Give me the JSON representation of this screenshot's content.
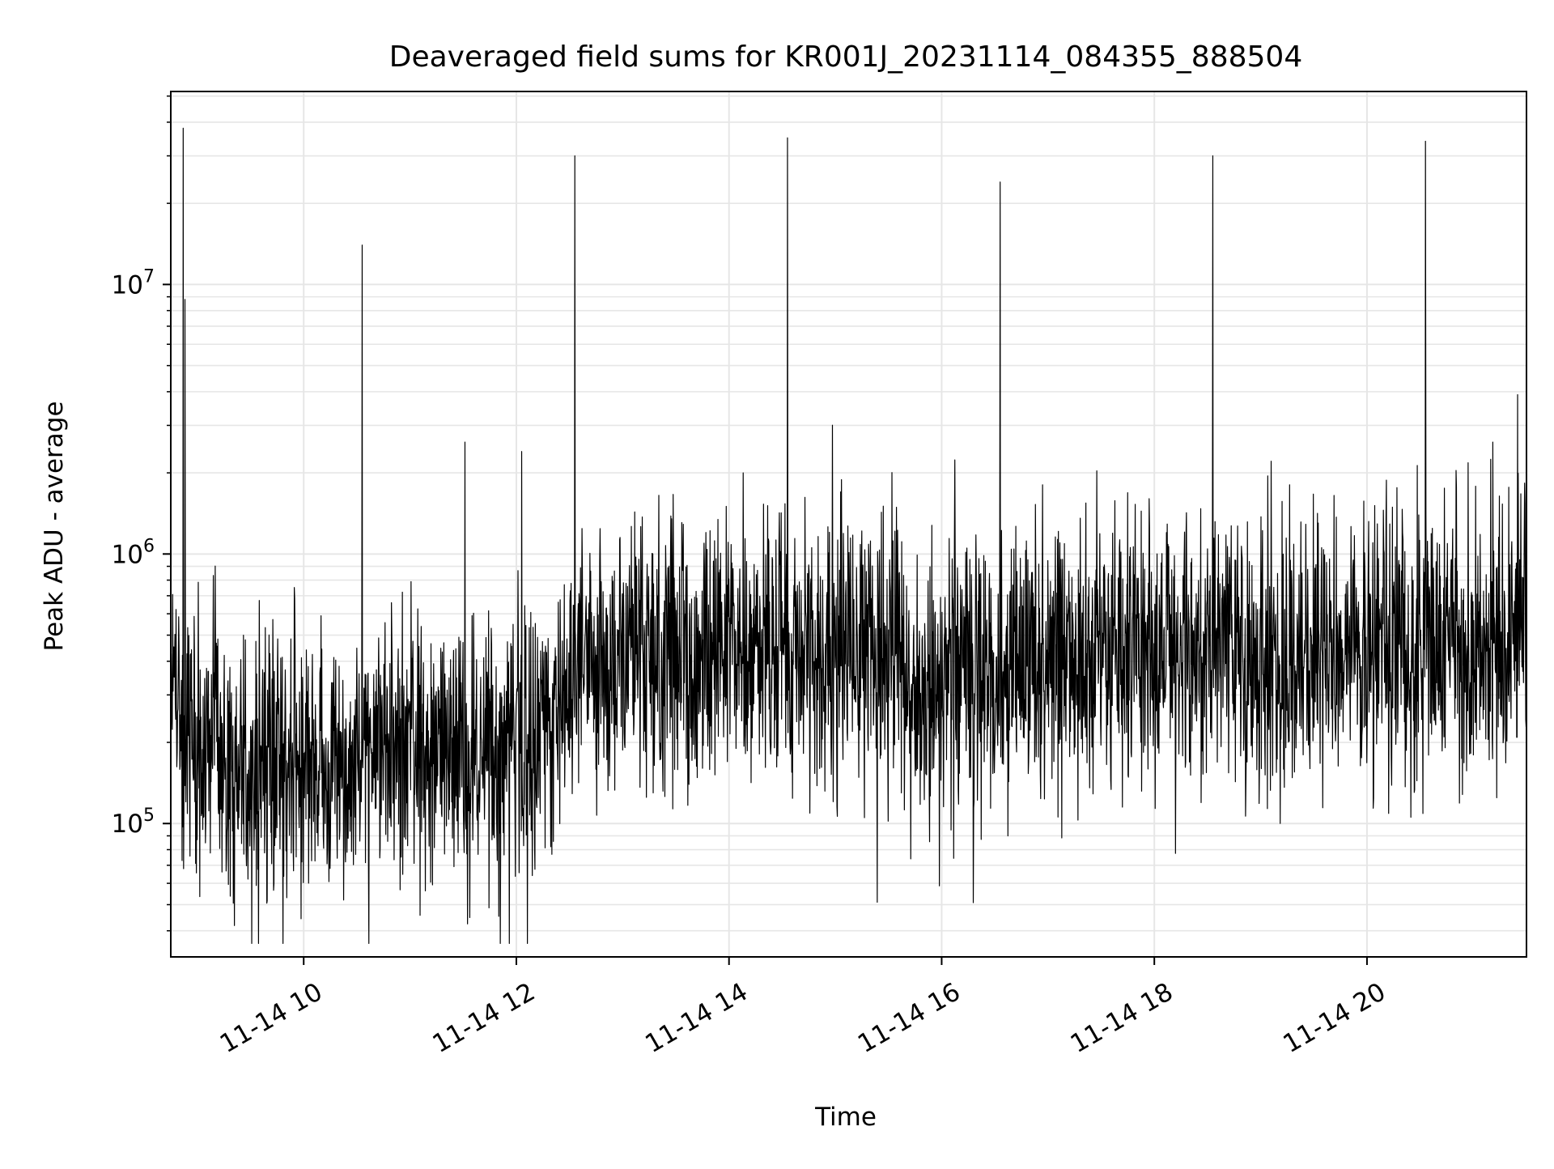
{
  "chart_data": {
    "type": "line",
    "title": "Deaveraged field sums for KR001J_20231114_084355_888504",
    "xlabel": "Time",
    "ylabel": "Peak ADU - average",
    "yscale": "log",
    "ylim": [
      32000,
      52000000
    ],
    "xlim": [
      "2023-11-14 08:45",
      "2023-11-14 21:30"
    ],
    "grid": true,
    "x_tick_labels": [
      "11-14 10",
      "11-14 12",
      "11-14 14",
      "11-14 16",
      "11-14 18",
      "11-14 20"
    ],
    "x_ticks": [
      "2023-11-14 10:00",
      "2023-11-14 12:00",
      "2023-11-14 14:00",
      "2023-11-14 16:00",
      "2023-11-14 18:00",
      "2023-11-14 20:00"
    ],
    "y_tick_labels": [
      {
        "base": "10",
        "exp": "5",
        "value": 100000
      },
      {
        "base": "10",
        "exp": "6",
        "value": 1000000
      },
      {
        "base": "10",
        "exp": "7",
        "value": 10000000
      }
    ],
    "line_color": "#000000",
    "grid_color": "#e6e6e6",
    "series": [
      {
        "baseline": [
          {
            "x": "2023-11-14 08:45",
            "y": 300000
          },
          {
            "x": "2023-11-14 09:00",
            "y": 200000
          },
          {
            "x": "2023-11-14 09:30",
            "y": 160000
          },
          {
            "x": "2023-11-14 10:00",
            "y": 170000
          },
          {
            "x": "2023-11-14 10:30",
            "y": 170000
          },
          {
            "x": "2023-11-14 11:00",
            "y": 190000
          },
          {
            "x": "2023-11-14 11:30",
            "y": 170000
          },
          {
            "x": "2023-11-14 12:00",
            "y": 200000
          },
          {
            "x": "2023-11-14 12:20",
            "y": 260000
          },
          {
            "x": "2023-11-14 12:30",
            "y": 400000
          },
          {
            "x": "2023-11-14 13:30",
            "y": 420000
          },
          {
            "x": "2023-11-14 14:30",
            "y": 420000
          },
          {
            "x": "2023-11-14 15:40",
            "y": 400000
          },
          {
            "x": "2023-11-14 15:45",
            "y": 280000
          },
          {
            "x": "2023-11-14 16:10",
            "y": 360000
          },
          {
            "x": "2023-11-14 17:00",
            "y": 430000
          },
          {
            "x": "2023-11-14 18:00",
            "y": 440000
          },
          {
            "x": "2023-11-14 19:00",
            "y": 420000
          },
          {
            "x": "2023-11-14 20:00",
            "y": 430000
          },
          {
            "x": "2023-11-14 21:00",
            "y": 470000
          },
          {
            "x": "2023-11-14 21:30",
            "y": 560000
          }
        ],
        "spikes": [
          {
            "x": "2023-11-14 08:52",
            "y": 38000000
          },
          {
            "x": "2023-11-14 08:53",
            "y": 8800000
          },
          {
            "x": "2023-11-14 10:33",
            "y": 14000000
          },
          {
            "x": "2023-11-14 11:31",
            "y": 2600000
          },
          {
            "x": "2023-11-14 12:03",
            "y": 2400000
          },
          {
            "x": "2023-11-14 12:33",
            "y": 30000000
          },
          {
            "x": "2023-11-14 14:33",
            "y": 35000000
          },
          {
            "x": "2023-11-14 15:03",
            "y": 1700000
          },
          {
            "x": "2023-11-14 14:08",
            "y": 2000000
          },
          {
            "x": "2023-11-14 16:33",
            "y": 24000000
          },
          {
            "x": "2023-11-14 18:33",
            "y": 30000000
          },
          {
            "x": "2023-11-14 20:33",
            "y": 34000000
          },
          {
            "x": "2023-11-14 21:11",
            "y": 2600000
          },
          {
            "x": "2023-11-14 21:25",
            "y": 3900000
          }
        ]
      }
    ]
  }
}
